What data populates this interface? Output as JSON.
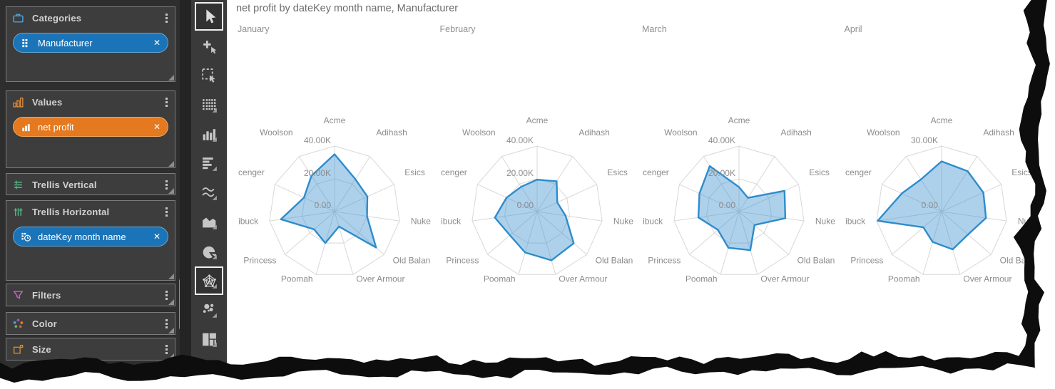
{
  "theme": {
    "panel_bg": "#2e2e2e",
    "section_bg": "#3d3d3d",
    "section_border": "#7c7c7c",
    "chip_blue": "#1b74b8",
    "chip_blue_border": "#5fa8dc",
    "chip_orange": "#e4791f",
    "chip_orange_border": "#f2a75c",
    "selected_tool_border": "#f0f0f0",
    "radar_stroke": "#2d8ccc",
    "radar_fill": "rgba(62,145,207,0.42)",
    "grid_color": "#d8d8d8",
    "label_color": "#8c8c8c",
    "title_color": "#6c6c6c"
  },
  "panel": {
    "sections": [
      {
        "id": "categories",
        "label": "Categories",
        "icon": "briefcase-icon",
        "chips": [
          {
            "label": "Manufacturer",
            "icon": "grid-icon",
            "color": "blue",
            "close_label": "✕"
          }
        ]
      },
      {
        "id": "values",
        "label": "Values",
        "icon": "outline-bars-icon",
        "chips": [
          {
            "label": "net profit",
            "icon": "mini-bars-icon",
            "color": "orange",
            "close_label": "✕"
          }
        ]
      },
      {
        "id": "trellis-vertical",
        "label": "Trellis Vertical",
        "icon": "trellis-vertical-icon",
        "chips": []
      },
      {
        "id": "trellis-horizontal",
        "label": "Trellis Horizontal",
        "icon": "trellis-horizontal-icon",
        "chips": [
          {
            "label": "dateKey month name",
            "icon": "date-clock-icon",
            "color": "blue",
            "close_label": "✕"
          }
        ]
      },
      {
        "id": "filters",
        "label": "Filters",
        "icon": "funnel-icon",
        "chips": []
      },
      {
        "id": "color",
        "label": "Color",
        "icon": "color-dots-icon",
        "chips": []
      },
      {
        "id": "size",
        "label": "Size",
        "icon": "size-icon",
        "chips": []
      }
    ]
  },
  "toolbar": {
    "tools": [
      {
        "id": "cursor-arrow-tool",
        "selected": true,
        "menu": false
      },
      {
        "id": "crosshair-add-tool",
        "selected": false,
        "menu": false
      },
      {
        "id": "marquee-select-tool",
        "selected": false,
        "menu": false
      },
      {
        "id": "grid-visual-tool",
        "selected": false,
        "menu": true
      },
      {
        "id": "column-chart-tool",
        "selected": false,
        "menu": true
      },
      {
        "id": "bar-chart-tool",
        "selected": false,
        "menu": true
      },
      {
        "id": "line-chart-tool",
        "selected": false,
        "menu": true
      },
      {
        "id": "area-chart-tool",
        "selected": false,
        "menu": true
      },
      {
        "id": "pie-chart-tool",
        "selected": false,
        "menu": true
      },
      {
        "id": "radar-chart-tool",
        "selected": true,
        "menu": true
      },
      {
        "id": "scatter-chart-tool",
        "selected": false,
        "menu": true
      },
      {
        "id": "treemap-chart-tool",
        "selected": false,
        "menu": true
      }
    ]
  },
  "chart_data": {
    "type": "radar",
    "title": "net profit by dateKey month name, Manufacturer",
    "measure": "net profit",
    "axes": [
      "Acme",
      "Adihash",
      "Esics",
      "Nuke",
      "Old Balan",
      "Over Armour",
      "Poomah",
      "Princess",
      "ibuck",
      "cenger",
      "Woolson"
    ],
    "panels": [
      {
        "label": "January",
        "max": 40000,
        "ticks": [
          {
            "label": "40.00K",
            "position": 1
          },
          {
            "label": "20.00K",
            "position": 0.5
          },
          {
            "label": "0.00",
            "position": 0
          }
        ],
        "values": [
          35000,
          23500,
          22000,
          20000,
          33500,
          9500,
          20000,
          16500,
          33000,
          20500,
          26000
        ]
      },
      {
        "label": "February",
        "max": 40000,
        "ticks": [
          {
            "label": "40.00K",
            "position": 1
          },
          {
            "label": "20.00K",
            "position": 0.5
          },
          {
            "label": "0.00",
            "position": 0
          }
        ],
        "values": [
          19500,
          22000,
          13500,
          17500,
          29500,
          31000,
          26000,
          22000,
          26000,
          20500,
          18000
        ]
      },
      {
        "label": "March",
        "max": 40000,
        "ticks": [
          {
            "label": "40.00K",
            "position": 1
          },
          {
            "label": "20.00K",
            "position": 0.5
          },
          {
            "label": "0.00",
            "position": 0
          }
        ],
        "values": [
          15000,
          10000,
          30500,
          28500,
          12500,
          24500,
          23000,
          17000,
          25000,
          26500,
          33000
        ]
      },
      {
        "label": "April",
        "max": 30000,
        "ticks": [
          {
            "label": "30.00K",
            "position": 1
          },
          {
            "label": "0.00",
            "position": 0
          }
        ],
        "values": [
          23000,
          22000,
          21000,
          20500,
          16000,
          18000,
          14500,
          11000,
          29500,
          20000,
          17500
        ]
      }
    ]
  }
}
